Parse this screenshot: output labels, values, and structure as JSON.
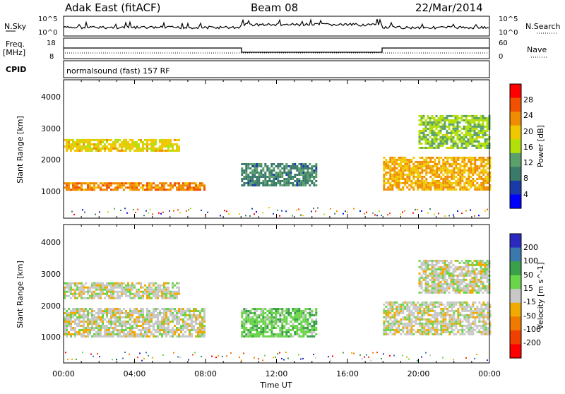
{
  "header": {
    "station": "Adak East (fitACF)",
    "beam": "Beam 08",
    "date": "22/Mar/2014"
  },
  "status_panel": {
    "nsky_label": "N.Sky",
    "nsky_ticks": [
      "10^5",
      "10^0"
    ],
    "nsearch_label": "N.Search",
    "freq_label": "Freq.",
    "freq_unit": "[MHz]",
    "freq_ticks": [
      "18",
      "8"
    ],
    "nave_label": "Nave",
    "nave_ticks": [
      "60",
      "0"
    ],
    "cpid_label": "CPID",
    "cpid_text": "normalsound (fast) 157 RF"
  },
  "axes": {
    "x_ticks": [
      "00:00",
      "04:00",
      "08:00",
      "12:00",
      "16:00",
      "20:00",
      "00:00"
    ],
    "x_label": "Time UT",
    "y_ticks": [
      "1000",
      "2000",
      "3000",
      "4000"
    ],
    "y_label": "Slant Range [km]"
  },
  "colors": {
    "power": [
      "#0000ff",
      "#1a3aa8",
      "#3a7a6a",
      "#5aa06a",
      "#b4e00a",
      "#f0c800",
      "#f08c00",
      "#f05000",
      "#ff0000"
    ],
    "velocity": [
      "#2a2ac0",
      "#3a78ae",
      "#3aa04a",
      "#6ad44a",
      "#c8c8c8",
      "#f0aa00",
      "#f07a00",
      "#f04000",
      "#ff0000"
    ]
  },
  "chart_data": [
    {
      "type": "heatmap",
      "title": "",
      "xlabel": "Time UT",
      "ylabel": "Slant Range [km]",
      "x_range_hours": [
        0,
        24
      ],
      "ylim": [
        180,
        4500
      ],
      "colorbar": {
        "label": "Power [dB]",
        "ticks": [
          "28",
          "24",
          "20",
          "16",
          "12",
          "8",
          "4"
        ],
        "range": [
          0,
          30
        ]
      },
      "regions": [
        {
          "name": "",
          "t0": 0.0,
          "t1": 8.0,
          "r_lo": 1050,
          "r_hi": 1300,
          "value": 22
        },
        {
          "name": "",
          "t0": 0.0,
          "t1": 6.5,
          "r_lo": 2300,
          "r_hi": 2650,
          "value": 18
        },
        {
          "name": "",
          "t0": 10.0,
          "t1": 14.2,
          "r_lo": 1200,
          "r_hi": 1900,
          "value": 9
        },
        {
          "name": "",
          "t0": 18.0,
          "t1": 24.0,
          "r_lo": 1100,
          "r_hi": 2100,
          "value": 20
        },
        {
          "name": "",
          "t0": 20.0,
          "t1": 24.0,
          "r_lo": 2400,
          "r_hi": 3400,
          "value": 14
        }
      ]
    },
    {
      "type": "heatmap",
      "title": "",
      "xlabel": "Time UT",
      "ylabel": "Slant Range [km]",
      "x_range_hours": [
        0,
        24
      ],
      "ylim": [
        180,
        4500
      ],
      "colorbar": {
        "label": "Velocity [m s^-1]",
        "ticks": [
          "200",
          "100",
          "50",
          "15",
          "-15",
          "-50",
          "-100",
          "-200"
        ],
        "range": [
          -250,
          250
        ]
      },
      "regions": [
        {
          "name": "",
          "t0": 0.0,
          "t1": 8.0,
          "r_lo": 1000,
          "r_hi": 1900,
          "value": 0
        },
        {
          "name": "",
          "t0": 0.0,
          "t1": 6.5,
          "r_lo": 2200,
          "r_hi": 2700,
          "value": 0
        },
        {
          "name": "",
          "t0": 10.0,
          "t1": 14.2,
          "r_lo": 1000,
          "r_hi": 1900,
          "value": 60
        },
        {
          "name": "",
          "t0": 18.0,
          "t1": 24.0,
          "r_lo": 1100,
          "r_hi": 2100,
          "value": 0
        },
        {
          "name": "",
          "t0": 20.0,
          "t1": 24.0,
          "r_lo": 2400,
          "r_hi": 3400,
          "value": 0
        }
      ]
    }
  ]
}
